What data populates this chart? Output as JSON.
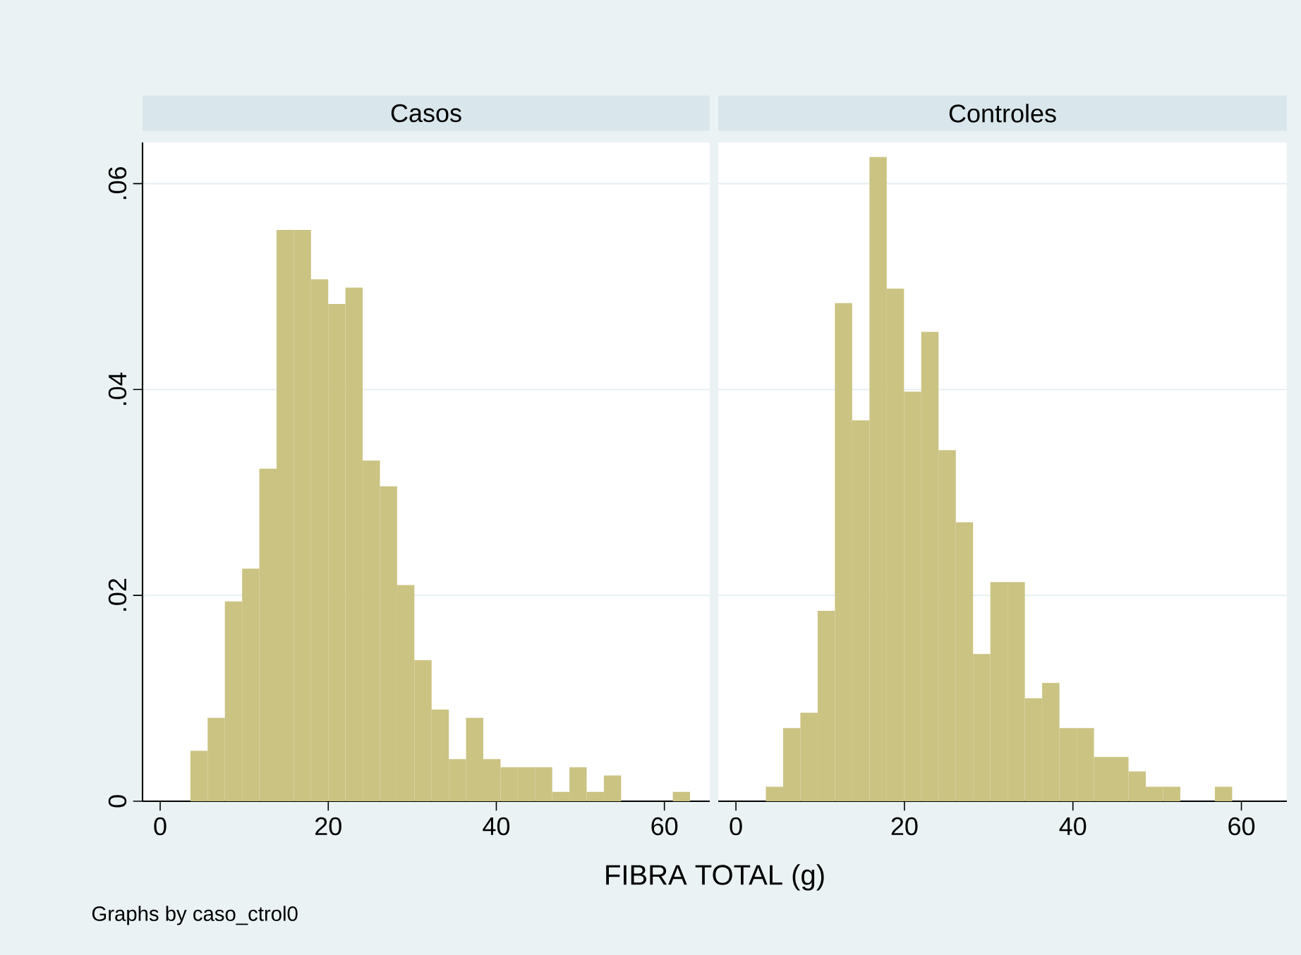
{
  "chart_data": [
    {
      "type": "histogram",
      "title": "Casos",
      "xlabel": "FIBRA TOTAL (g)",
      "annotations": [
        "Graphs by caso_ctrol0"
      ],
      "bins": [
        3.6,
        5.65,
        7.7,
        9.75,
        11.8,
        13.85,
        15.9,
        17.95,
        20.0,
        22.05,
        24.1,
        26.15,
        28.2,
        30.25,
        32.3,
        34.35,
        36.4,
        38.45,
        40.5,
        42.55,
        44.6,
        46.65,
        48.7,
        50.75,
        52.8,
        54.85,
        56.9,
        58.95,
        61.0,
        63.05
      ],
      "values": [
        0.0049,
        0.0081,
        0.0194,
        0.0226,
        0.0323,
        0.0555,
        0.0555,
        0.0507,
        0.0483,
        0.0499,
        0.0331,
        0.0306,
        0.021,
        0.0137,
        0.0089,
        0.0041,
        0.0081,
        0.0041,
        0.0033,
        0.0033,
        0.0033,
        0.0009,
        0.0033,
        0.0009,
        0.0025,
        0,
        0,
        0,
        0.0009
      ],
      "color": "#cbc382",
      "xlim": [
        -2.1,
        65.4
      ],
      "ylim": [
        0,
        0.064
      ],
      "xticks": [
        0,
        20,
        40,
        60
      ],
      "yticks": [
        0,
        {
          "value": 0.02,
          "label": ".02"
        },
        {
          "value": 0.04,
          "label": ".04"
        },
        {
          "value": 0.06,
          "label": ".06"
        }
      ],
      "grid": "y"
    },
    {
      "type": "histogram",
      "title": "Controles",
      "bins": [
        3.55,
        5.6,
        7.65,
        9.7,
        11.75,
        13.8,
        15.85,
        17.9,
        19.95,
        22.0,
        24.05,
        26.1,
        28.15,
        30.2,
        32.25,
        34.3,
        36.35,
        38.4,
        40.45,
        42.5,
        44.55,
        46.6,
        48.65,
        50.7,
        52.75,
        54.8,
        56.85,
        58.9
      ],
      "values": [
        0.0014,
        0.0071,
        0.0086,
        0.0185,
        0.0484,
        0.037,
        0.0626,
        0.0498,
        0.0398,
        0.0456,
        0.0341,
        0.0271,
        0.0143,
        0.0213,
        0.0213,
        0.01,
        0.0115,
        0.0071,
        0.0071,
        0.0043,
        0.0043,
        0.0029,
        0.0014,
        0.0014,
        0,
        0,
        0.0014
      ],
      "color": "#cbc382",
      "xlim": [
        -2.1,
        65.4
      ],
      "ylim": [
        0,
        0.064
      ],
      "xticks": [
        0,
        20,
        40,
        60
      ],
      "yticks": [
        0,
        0.02,
        0.04,
        0.06
      ],
      "grid": "y",
      "tick_labels": "x"
    }
  ]
}
